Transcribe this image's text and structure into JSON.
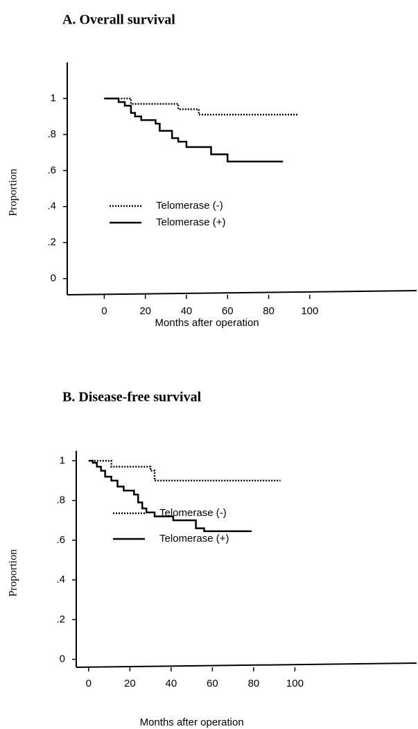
{
  "chart_data": [
    {
      "type": "line",
      "step": "post",
      "title": "A. Overall survival",
      "xlabel": "Months after operation",
      "ylabel": "Proportion",
      "xlim": [
        -18,
        152
      ],
      "xticks": [
        0,
        20,
        40,
        60,
        80,
        100
      ],
      "ylim": [
        -0.09,
        1.2
      ],
      "yticks": [
        0,
        {
          "value": 0.2,
          "label": ".2"
        },
        {
          "value": 0.4,
          "label": ".4"
        },
        {
          "value": 0.6,
          "label": ".6"
        },
        {
          "value": 0.8,
          "label": ".8"
        },
        1
      ],
      "series": [
        {
          "name": "Telomerase (-)",
          "color": "#000000",
          "dash": "dotted",
          "x": [
            0,
            13,
            36,
            46,
            94
          ],
          "values": [
            1,
            0.97,
            0.94,
            0.91,
            0.91
          ]
        },
        {
          "name": "Telomerase (+)",
          "color": "#000000",
          "dash": "solid",
          "x": [
            0,
            7,
            10,
            13,
            15,
            18,
            25,
            27,
            33,
            36,
            40,
            52,
            60,
            87
          ],
          "values": [
            1,
            0.98,
            0.96,
            0.92,
            0.9,
            0.88,
            0.86,
            0.82,
            0.78,
            0.76,
            0.73,
            0.69,
            0.65,
            0.65
          ]
        }
      ]
    },
    {
      "type": "line",
      "step": "post",
      "title": "B. Disease-free survival",
      "xlabel": "Months after operation",
      "ylabel": "Proportion",
      "xlim": [
        -6,
        159
      ],
      "xticks": [
        0,
        20,
        40,
        60,
        80,
        100
      ],
      "ylim": [
        -0.04,
        1.05
      ],
      "yticks": [
        0,
        {
          "value": 0.2,
          "label": ".2"
        },
        {
          "value": 0.4,
          "label": ".4"
        },
        {
          "value": 0.6,
          "label": ".6"
        },
        {
          "value": 0.8,
          "label": ".8"
        },
        1
      ],
      "series": [
        {
          "name": "Telomerase (-)",
          "color": "#000000",
          "dash": "dotted",
          "x": [
            0,
            11,
            30,
            32,
            93
          ],
          "values": [
            1,
            0.97,
            0.95,
            0.9,
            0.9
          ]
        },
        {
          "name": "Telomerase (+)",
          "color": "#000000",
          "dash": "solid",
          "x": [
            0,
            2,
            4,
            6,
            8,
            11,
            14,
            17,
            22,
            24,
            26,
            28,
            32,
            41,
            52,
            56,
            79
          ],
          "values": [
            1,
            0.99,
            0.97,
            0.95,
            0.92,
            0.9,
            0.87,
            0.85,
            0.83,
            0.79,
            0.76,
            0.74,
            0.72,
            0.7,
            0.66,
            0.645,
            0.645
          ]
        }
      ]
    }
  ]
}
